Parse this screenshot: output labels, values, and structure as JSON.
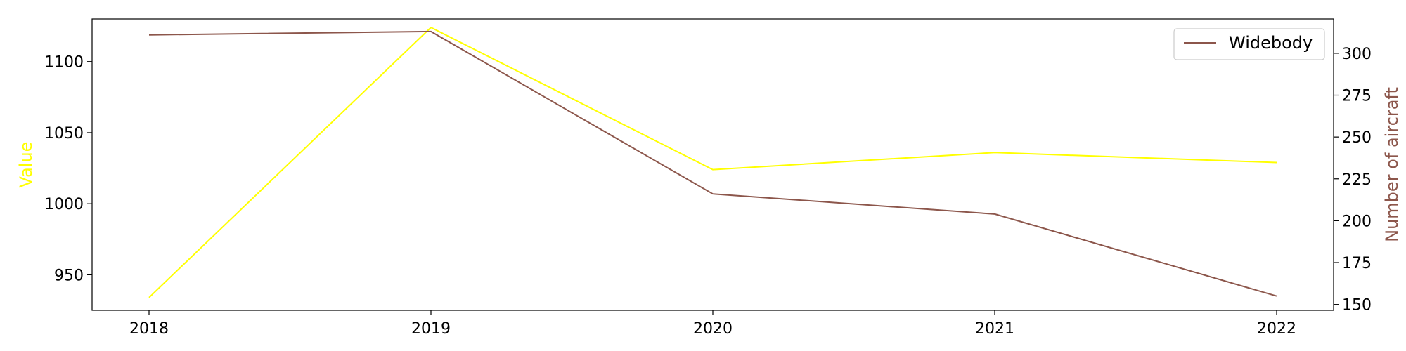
{
  "chart_data": {
    "type": "line",
    "x": [
      "2018",
      "2019",
      "2020",
      "2021",
      "2022"
    ],
    "title": "",
    "xlabel": "",
    "left_axis": {
      "label": "Value",
      "color": "#ffff00",
      "ylim": [
        925,
        1130
      ],
      "ticks": [
        950,
        1000,
        1050,
        1100
      ]
    },
    "right_axis": {
      "label": "Number of aircraft",
      "color": "#8c564b",
      "ylim": [
        146.5,
        320.5
      ],
      "ticks": [
        150,
        175,
        200,
        225,
        250,
        275,
        300
      ]
    },
    "series": [
      {
        "axis": "left",
        "color": "#ffff00",
        "values": [
          934,
          1124,
          1024,
          1036,
          1029
        ]
      },
      {
        "name": "Widebody",
        "axis": "right",
        "color": "#8c564b",
        "values": [
          311,
          313,
          216,
          204,
          155
        ]
      }
    ],
    "legend": {
      "position": "top-right",
      "entries": [
        "Widebody"
      ]
    },
    "grid": false
  }
}
